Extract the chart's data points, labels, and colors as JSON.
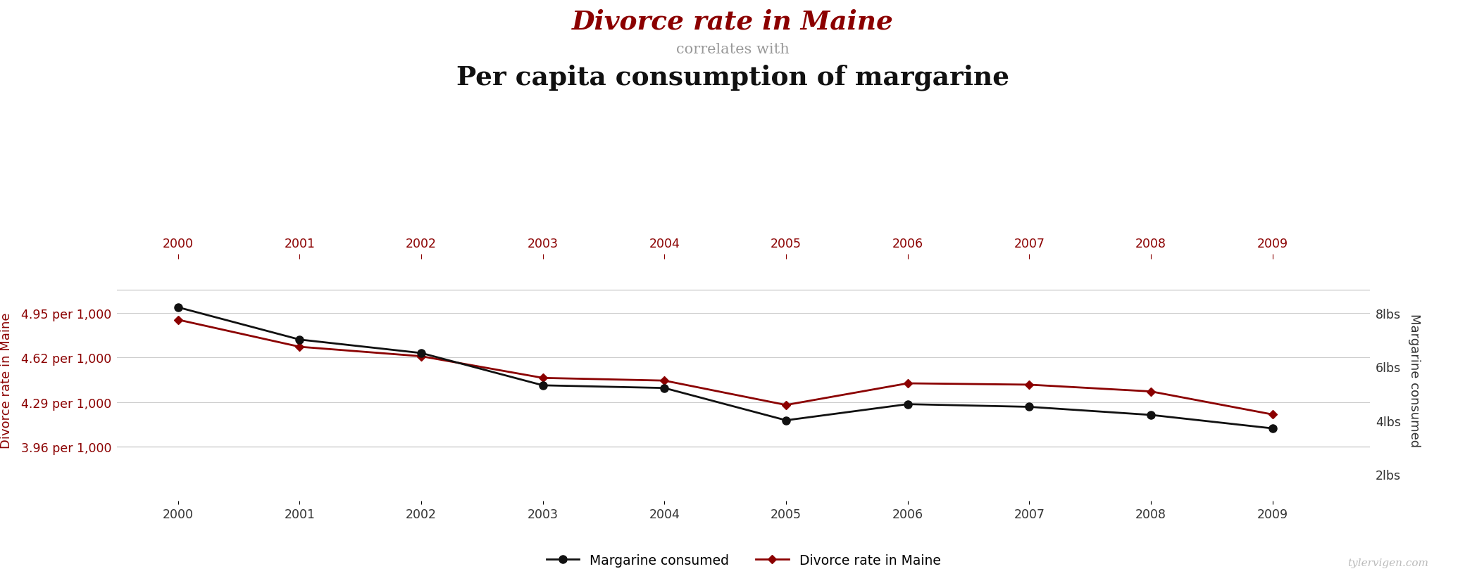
{
  "title_line1": "Divorce rate in Maine",
  "title_line2": "correlates with",
  "title_line3": "Per capita consumption of margarine",
  "years": [
    2000,
    2001,
    2002,
    2003,
    2004,
    2005,
    2006,
    2007,
    2008,
    2009
  ],
  "margarine": [
    8.2,
    7.0,
    6.5,
    5.3,
    5.2,
    4.0,
    4.6,
    4.5,
    4.2,
    3.7
  ],
  "divorce_rate": [
    4.9,
    4.7,
    4.63,
    4.47,
    4.45,
    4.27,
    4.43,
    4.42,
    4.37,
    4.2
  ],
  "divorce_ylim": [
    3.56,
    5.35
  ],
  "margarine_ylim": [
    1.0,
    10.0
  ],
  "divorce_yticks": [
    3.96,
    4.29,
    4.62,
    4.95
  ],
  "divorce_ytick_labels": [
    "3.96 per 1,000",
    "4.29 per 1,000",
    "4.62 per 1,000",
    "4.95 per 1,000"
  ],
  "margarine_yticks": [
    2,
    4,
    6,
    8
  ],
  "margarine_ytick_labels": [
    "2lbs",
    "4lbs",
    "6lbs",
    "8lbs"
  ],
  "left_ylabel": "Divorce rate in Maine",
  "right_ylabel": "Margarine consumed",
  "divorce_color": "#8b0000",
  "margarine_color": "#111111",
  "title1_color": "#8b0000",
  "title2_color": "#999999",
  "title3_color": "#111111",
  "grid_color": "#cccccc",
  "background_color": "#ffffff",
  "watermark": "tylervigen.com",
  "legend_margarine": "Margarine consumed",
  "legend_divorce": "Divorce rate in Maine",
  "xlim": [
    1999.5,
    2009.8
  ]
}
